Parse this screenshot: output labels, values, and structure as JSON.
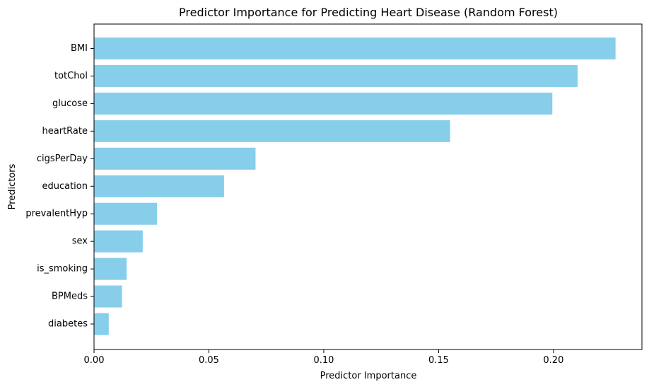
{
  "chart_data": {
    "type": "bar",
    "orientation": "horizontal",
    "title": "Predictor Importance for Predicting Heart Disease (Random Forest)",
    "xlabel": "Predictor Importance",
    "ylabel": "Predictors",
    "categories": [
      "BMI",
      "totChol",
      "glucose",
      "heartRate",
      "cigsPerDay",
      "education",
      "prevalentHyp",
      "sex",
      "is_smoking",
      "BPMeds",
      "diabetes"
    ],
    "values": [
      0.227,
      0.2105,
      0.1995,
      0.155,
      0.0703,
      0.0566,
      0.0274,
      0.0212,
      0.0142,
      0.0122,
      0.0064
    ],
    "xlim": [
      0,
      0.2385
    ],
    "xticks": [
      0.0,
      0.05,
      0.1,
      0.15,
      0.2
    ],
    "xtick_labels": [
      "0.00",
      "0.05",
      "0.10",
      "0.15",
      "0.20"
    ],
    "bar_color": "#87ceeb",
    "grid": false
  }
}
